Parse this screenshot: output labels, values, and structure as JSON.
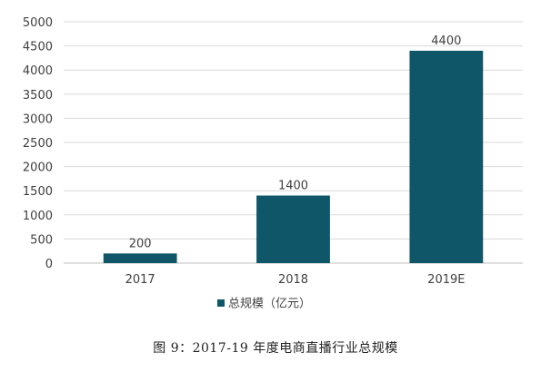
{
  "chart_data": {
    "type": "bar",
    "categories": [
      "2017",
      "2018",
      "2019E"
    ],
    "series": [
      {
        "name": "总规模（亿元）",
        "values": [
          200,
          1400,
          4400
        ]
      }
    ],
    "data_labels": [
      "200",
      "1400",
      "4400"
    ],
    "ylim": [
      0,
      5000
    ],
    "y_ticks": [
      0,
      500,
      1000,
      1500,
      2000,
      2500,
      3000,
      3500,
      4000,
      4500,
      5000
    ],
    "grid": true,
    "legend_position": "bottom",
    "colors": {
      "bar": "#0f5669",
      "grid": "#d9d9d9",
      "text": "#404040"
    }
  },
  "caption": "图 9：2017-19 年度电商直播行业总规模"
}
